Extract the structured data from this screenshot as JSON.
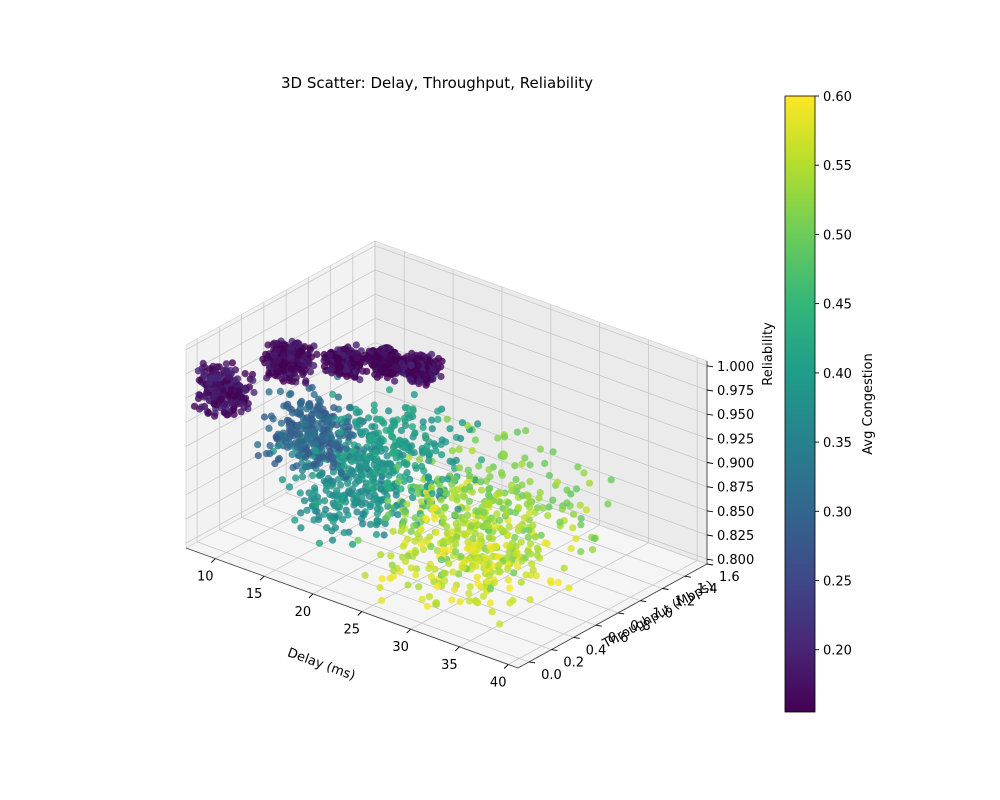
{
  "chart_data": {
    "type": "scatter",
    "projection": "3d",
    "title": "3D Scatter: Delay, Throughput, Reliability",
    "xlabel": "Delay (ms)",
    "ylabel": "Throughput (Mbps)",
    "zlabel": "Reliability",
    "xlim": [
      7,
      41
    ],
    "ylim": [
      -0.1,
      1.6
    ],
    "zlim": [
      0.795,
      1.005
    ],
    "x_ticks": [
      "10",
      "15",
      "20",
      "25",
      "30",
      "35",
      "40"
    ],
    "y_ticks": [
      "0.0",
      "0.2",
      "0.4",
      "0.6",
      "0.8",
      "1.0",
      "1.2",
      "1.4",
      "1.6"
    ],
    "z_ticks": [
      "0.800",
      "0.825",
      "0.850",
      "0.875",
      "0.900",
      "0.925",
      "0.950",
      "0.975",
      "1.000"
    ],
    "grid": true,
    "colormap": "viridis",
    "colorbar": {
      "label": "Avg Congestion",
      "range": [
        0.155,
        0.6
      ],
      "ticks": [
        "0.20",
        "0.25",
        "0.30",
        "0.35",
        "0.40",
        "0.45",
        "0.50",
        "0.55",
        "0.60"
      ]
    },
    "clusters": [
      {
        "label_value": 0.18,
        "center": [
          9,
          0.05,
          0.955
        ],
        "spread": [
          2,
          0.1,
          0.02
        ]
      },
      {
        "label_value": 0.17,
        "center": [
          13,
          0.3,
          0.985
        ],
        "spread": [
          1.5,
          0.1,
          0.015
        ]
      },
      {
        "label_value": 0.17,
        "center": [
          17,
          0.45,
          0.99
        ],
        "spread": [
          1.2,
          0.08,
          0.01
        ]
      },
      {
        "label_value": 0.16,
        "center": [
          20,
          0.55,
          0.995
        ],
        "spread": [
          1.2,
          0.08,
          0.01
        ]
      },
      {
        "label_value": 0.17,
        "center": [
          23,
          0.6,
          0.995
        ],
        "spread": [
          1.2,
          0.08,
          0.01
        ]
      },
      {
        "label_value": 0.3,
        "center": [
          16,
          0.25,
          0.925
        ],
        "spread": [
          3,
          0.2,
          0.03
        ]
      },
      {
        "label_value": 0.4,
        "center": [
          22,
          0.5,
          0.91
        ],
        "spread": [
          5,
          0.3,
          0.05
        ]
      },
      {
        "label_value": 0.38,
        "center": [
          18,
          0.4,
          0.87
        ],
        "spread": [
          4,
          0.25,
          0.04
        ]
      },
      {
        "label_value": 0.52,
        "center": [
          30,
          0.6,
          0.875
        ],
        "spread": [
          6,
          0.5,
          0.05
        ]
      },
      {
        "label_value": 0.57,
        "center": [
          30,
          0.45,
          0.84
        ],
        "spread": [
          6,
          0.45,
          0.04
        ]
      }
    ]
  }
}
